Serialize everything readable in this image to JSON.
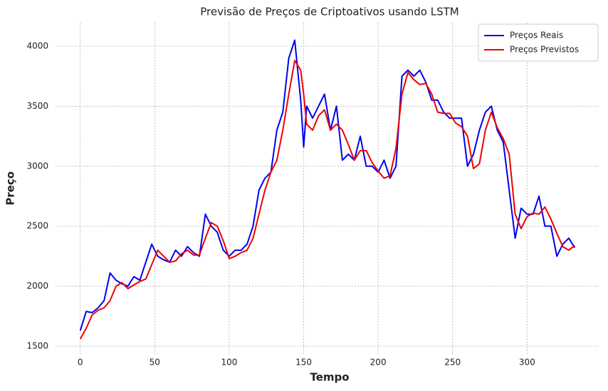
{
  "chart_data": {
    "type": "line",
    "title": "Previsão de Preços de Criptoativos usando LSTM",
    "x_label": "Tempo",
    "y_label": "Preço",
    "x": [
      0,
      4,
      8,
      12,
      16,
      20,
      24,
      28,
      32,
      36,
      40,
      44,
      48,
      52,
      56,
      60,
      64,
      68,
      72,
      76,
      80,
      84,
      88,
      92,
      96,
      100,
      104,
      108,
      112,
      116,
      120,
      124,
      128,
      132,
      136,
      140,
      144,
      148,
      150,
      152,
      156,
      160,
      164,
      168,
      172,
      176,
      180,
      184,
      188,
      192,
      196,
      200,
      204,
      208,
      212,
      216,
      220,
      224,
      228,
      232,
      236,
      240,
      244,
      248,
      252,
      256,
      260,
      264,
      268,
      272,
      276,
      280,
      284,
      288,
      292,
      296,
      300,
      304,
      308,
      312,
      316,
      320,
      324,
      328,
      332
    ],
    "series": [
      {
        "name": "Preços Reais",
        "color": "#0000ee",
        "values": [
          1630,
          1790,
          1780,
          1820,
          1880,
          2110,
          2050,
          2020,
          2000,
          2080,
          2050,
          2200,
          2350,
          2250,
          2220,
          2200,
          2300,
          2250,
          2330,
          2280,
          2250,
          2600,
          2500,
          2450,
          2300,
          2250,
          2300,
          2300,
          2350,
          2500,
          2800,
          2900,
          2950,
          3300,
          3450,
          3900,
          4050,
          3550,
          3160,
          3500,
          3400,
          3500,
          3600,
          3300,
          3500,
          3050,
          3100,
          3050,
          3250,
          3000,
          3000,
          2950,
          3050,
          2900,
          3000,
          3750,
          3800,
          3750,
          3800,
          3700,
          3550,
          3550,
          3450,
          3400,
          3400,
          3400,
          3000,
          3100,
          3300,
          3450,
          3500,
          3300,
          3200,
          2800,
          2400,
          2650,
          2600,
          2600,
          2750,
          2500,
          2500,
          2250,
          2350,
          2400,
          2320
        ]
      },
      {
        "name": "Preços Previstos",
        "color": "#ee0000",
        "values": [
          1560,
          1650,
          1760,
          1800,
          1820,
          1880,
          2000,
          2030,
          1980,
          2010,
          2040,
          2060,
          2180,
          2300,
          2250,
          2200,
          2210,
          2270,
          2300,
          2260,
          2260,
          2400,
          2530,
          2500,
          2380,
          2230,
          2250,
          2280,
          2300,
          2400,
          2600,
          2800,
          2950,
          3050,
          3300,
          3600,
          3880,
          3800,
          3600,
          3350,
          3300,
          3420,
          3470,
          3300,
          3350,
          3300,
          3180,
          3050,
          3130,
          3130,
          3030,
          2960,
          2900,
          2920,
          3150,
          3600,
          3780,
          3720,
          3680,
          3690,
          3600,
          3450,
          3440,
          3440,
          3360,
          3330,
          3250,
          2980,
          3020,
          3300,
          3450,
          3320,
          3230,
          3100,
          2600,
          2480,
          2580,
          2610,
          2600,
          2660,
          2560,
          2440,
          2330,
          2300,
          2340
        ]
      }
    ],
    "xlim": [
      -16.6,
      348.6
    ],
    "ylim": [
      1435,
      4195
    ],
    "xticks": [
      0,
      50,
      100,
      150,
      200,
      250,
      300
    ],
    "yticks": [
      1500,
      2000,
      2500,
      3000,
      3500,
      4000
    ],
    "grid": true,
    "legend": "upper right"
  }
}
